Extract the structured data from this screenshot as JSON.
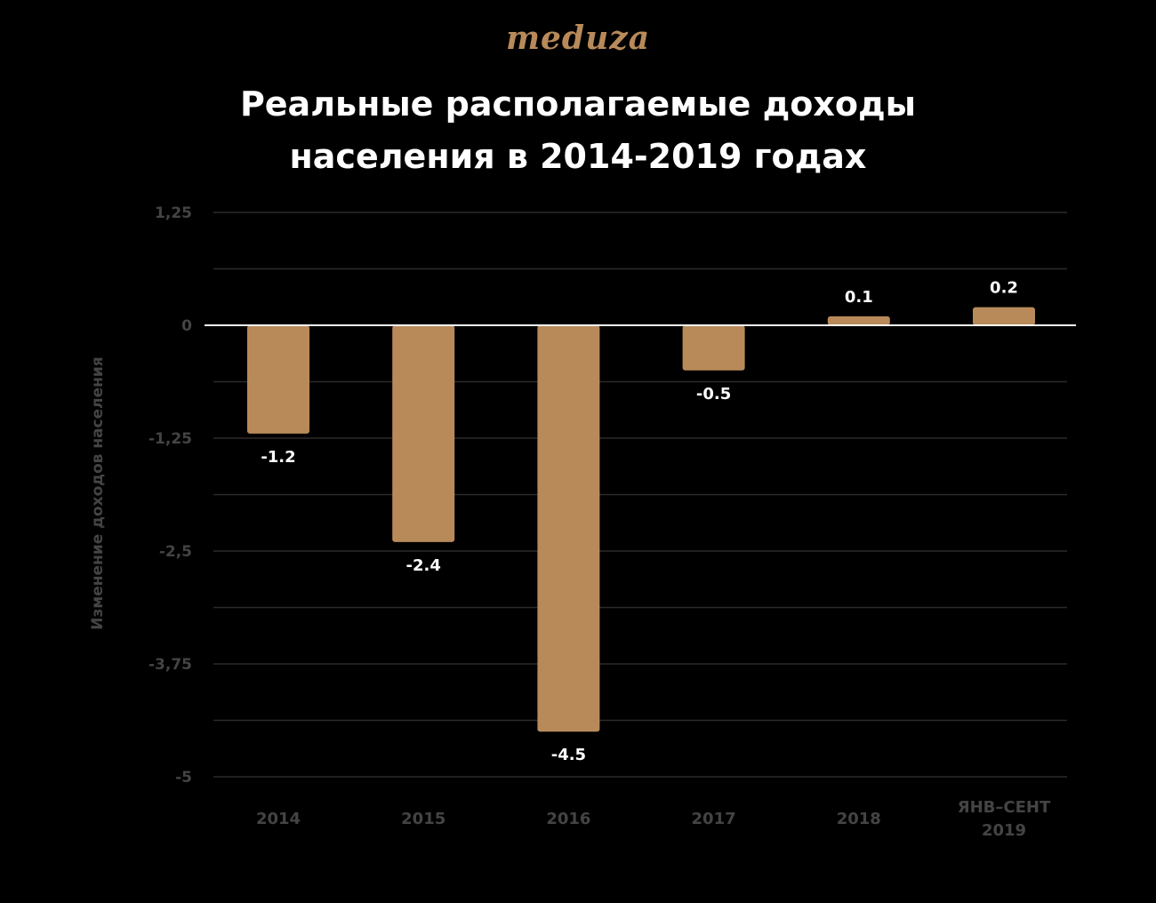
{
  "logo": "meduza",
  "title_lines": [
    "Реальные располагаемые доходы",
    "населения в 2014-2019 годах"
  ],
  "colors": {
    "background": "#000000",
    "bar": "#b88a5a",
    "logo": "#b88a5a",
    "title": "#ffffff",
    "axis_text": "#444444",
    "grid": "#2a2a2a",
    "zero_line": "#ffffff"
  },
  "chart_data": {
    "type": "bar",
    "title": "Реальные располагаемые доходы населения в 2014-2019 годах",
    "xlabel": "",
    "ylabel": "Изменение доходов населения",
    "categories": [
      [
        "2014"
      ],
      [
        "2015"
      ],
      [
        "2016"
      ],
      [
        "2017"
      ],
      [
        "2018"
      ],
      [
        "ЯНВ–СЕНТ",
        "2019"
      ]
    ],
    "values": [
      -1.2,
      -2.4,
      -4.5,
      -0.5,
      0.1,
      0.2
    ],
    "value_labels": [
      "-1.2",
      "-2.4",
      "-4.5",
      "-0.5",
      "0.1",
      "0.2"
    ],
    "ylim": [
      -5,
      1.25
    ],
    "yticks": [
      1.25,
      0,
      -1.25,
      -2.5,
      -3.75,
      -5
    ],
    "ytick_labels": [
      "1,25",
      "0",
      "-1,25",
      "-2,5",
      "-3,75",
      "-5"
    ],
    "grid": true,
    "legend": "none"
  }
}
